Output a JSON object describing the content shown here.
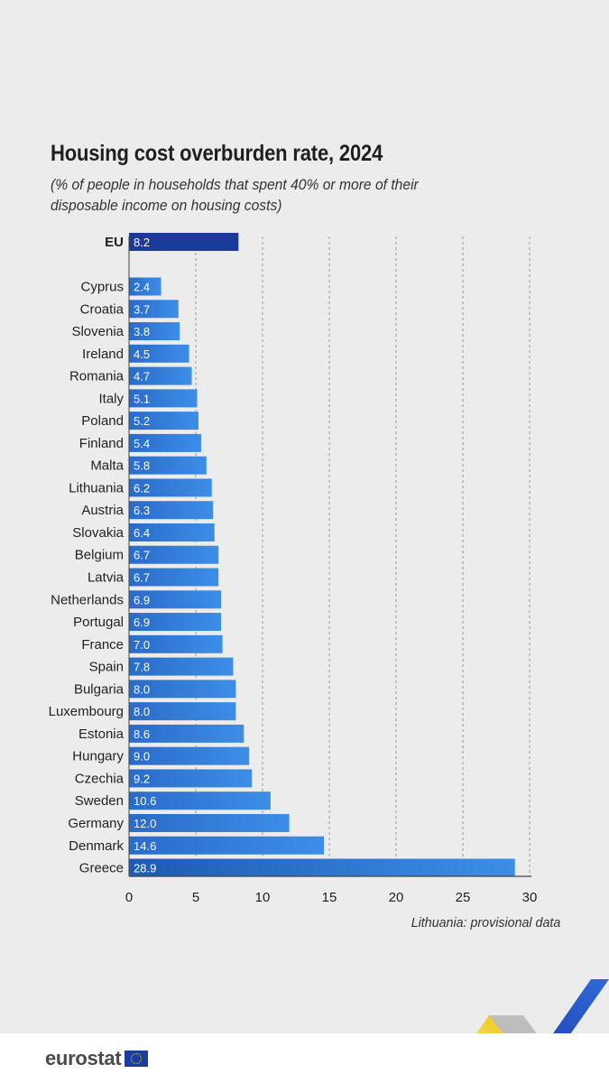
{
  "header": {
    "title": "Housing cost overburden rate, 2024",
    "subtitle": "(% of people in households that spent 40% or more of their disposable income on housing costs)"
  },
  "note": "Lithuania: provisional data",
  "brand": {
    "name": "eurostat",
    "logo_icon": "eu-flag-icon"
  },
  "colors": {
    "eu_bar": "#1b3a9a",
    "country_bar_dark": "#2a6bc9",
    "country_bar_light": "#3d8ee8",
    "greece_bar_dark": "#1d5bb5",
    "label_chip": "rgba(255,255,255,0.0)",
    "gridline": "#9a9a9a",
    "background": "#ececec"
  },
  "chart_data": {
    "type": "bar",
    "orientation": "horizontal",
    "title": "Housing cost overburden rate, 2024",
    "subtitle": "(% of people in households that spent 40% or more of their disposable income on housing costs)",
    "xlim": [
      0,
      30
    ],
    "xticks": [
      0,
      5,
      10,
      15,
      20,
      25,
      30
    ],
    "grid": "vertical dashed",
    "aggregate": {
      "label": "EU",
      "value": 8.2
    },
    "categories": [
      "Cyprus",
      "Croatia",
      "Slovenia",
      "Ireland",
      "Romania",
      "Italy",
      "Poland",
      "Finland",
      "Malta",
      "Lithuania",
      "Austria",
      "Slovakia",
      "Belgium",
      "Latvia",
      "Netherlands",
      "Portugal",
      "France",
      "Spain",
      "Bulgaria",
      "Luxembourg",
      "Estonia",
      "Hungary",
      "Czechia",
      "Sweden",
      "Germany",
      "Denmark",
      "Greece"
    ],
    "values": [
      2.4,
      3.7,
      3.8,
      4.5,
      4.7,
      5.1,
      5.2,
      5.4,
      5.8,
      6.2,
      6.3,
      6.4,
      6.7,
      6.7,
      6.9,
      6.9,
      7.0,
      7.8,
      8.0,
      8.0,
      8.6,
      9.0,
      9.2,
      10.6,
      12.0,
      14.6,
      28.9
    ],
    "value_labels": [
      "2.4",
      "3.7",
      "3.8",
      "4.5",
      "4.7",
      "5.1",
      "5.2",
      "5.4",
      "5.8",
      "6.2",
      "6.3",
      "6.4",
      "6.7",
      "6.7",
      "6.9",
      "6.9",
      "7.0",
      "7.8",
      "8.0",
      "8.0",
      "8.6",
      "9.0",
      "9.2",
      "10.6",
      "12.0",
      "14.6",
      "28.9"
    ]
  }
}
